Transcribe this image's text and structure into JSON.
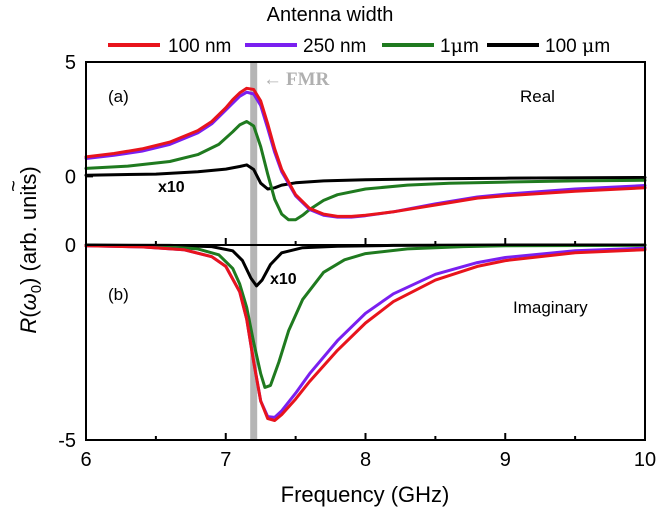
{
  "chart_data": {
    "type": "line",
    "legend_title": "Antenna width",
    "legend_position": "top",
    "xlabel": "Frequency (GHz)",
    "xlim": [
      6,
      10
    ],
    "xticks": [
      "6",
      "7",
      "8",
      "9",
      "10"
    ],
    "ylabel_parts": {
      "main": "R",
      "tilde": "~",
      "paren_open": "(",
      "omega": "ω",
      "sub": "0",
      "rest": ") (arb. units)"
    },
    "fmr": {
      "label": "FMR",
      "arrow": "←",
      "frequency": 7.2,
      "color": "#b5b5b5"
    },
    "colors": {
      "100 nm": "#e8141c",
      "250 nm": "#7a1ff0",
      "1μm": "#1f7a1f",
      "100 μm": "#000000"
    },
    "legend": [
      {
        "name": "100 nm",
        "color": "#e8141c",
        "parts": [
          "100 nm"
        ]
      },
      {
        "name": "250 nm",
        "color": "#7a1ff0",
        "parts": [
          "250 nm"
        ]
      },
      {
        "name": "1μm",
        "color": "#1f7a1f",
        "parts": [
          "1",
          "μ",
          "m"
        ]
      },
      {
        "name": "100 μm",
        "color": "#000000",
        "parts": [
          "100 ",
          "μ",
          "m"
        ]
      }
    ],
    "panels": [
      {
        "label": "(a)",
        "annotation": "Real",
        "scale_note": "x10",
        "ylim": [
          -3,
          5
        ],
        "yticks": [
          "5",
          "0"
        ],
        "series": [
          {
            "name": "100 nm",
            "color": "#e8141c",
            "x": [
              6.0,
              6.2,
              6.4,
              6.6,
              6.8,
              6.9,
              7.0,
              7.05,
              7.1,
              7.15,
              7.2,
              7.25,
              7.3,
              7.35,
              7.4,
              7.5,
              7.6,
              7.7,
              7.8,
              7.9,
              8.0,
              8.2,
              8.5,
              8.8,
              9.0,
              9.5,
              10.0
            ],
            "y": [
              0.85,
              1.0,
              1.2,
              1.5,
              2.0,
              2.4,
              3.0,
              3.35,
              3.65,
              3.85,
              3.8,
              3.3,
              2.3,
              1.2,
              0.3,
              -0.8,
              -1.4,
              -1.65,
              -1.75,
              -1.75,
              -1.7,
              -1.55,
              -1.25,
              -0.95,
              -0.85,
              -0.65,
              -0.5
            ]
          },
          {
            "name": "250 nm",
            "color": "#7a1ff0",
            "x": [
              6.0,
              6.2,
              6.4,
              6.6,
              6.8,
              6.9,
              7.0,
              7.05,
              7.1,
              7.15,
              7.2,
              7.25,
              7.3,
              7.35,
              7.4,
              7.5,
              7.6,
              7.7,
              7.8,
              7.9,
              8.0,
              8.2,
              8.5,
              8.8,
              9.0,
              9.5,
              10.0
            ],
            "y": [
              0.78,
              0.92,
              1.1,
              1.4,
              1.9,
              2.3,
              2.9,
              3.2,
              3.5,
              3.68,
              3.6,
              3.1,
              2.1,
              1.05,
              0.2,
              -0.85,
              -1.45,
              -1.7,
              -1.78,
              -1.78,
              -1.72,
              -1.55,
              -1.2,
              -0.9,
              -0.78,
              -0.55,
              -0.4
            ]
          },
          {
            "name": "1μm",
            "color": "#1f7a1f",
            "x": [
              6.0,
              6.3,
              6.6,
              6.8,
              6.95,
              7.05,
              7.1,
              7.15,
              7.2,
              7.25,
              7.3,
              7.35,
              7.4,
              7.45,
              7.5,
              7.55,
              7.6,
              7.7,
              7.8,
              8.0,
              8.3,
              8.6,
              9.0,
              9.5,
              10.0
            ],
            "y": [
              0.35,
              0.45,
              0.65,
              0.95,
              1.4,
              1.95,
              2.25,
              2.4,
              2.2,
              1.3,
              0.1,
              -1.0,
              -1.65,
              -1.9,
              -1.9,
              -1.7,
              -1.45,
              -1.05,
              -0.8,
              -0.55,
              -0.38,
              -0.3,
              -0.25,
              -0.2,
              -0.17
            ]
          },
          {
            "name": "100 μm",
            "color": "#000000",
            "x": [
              6.0,
              6.5,
              6.8,
              7.0,
              7.1,
              7.15,
              7.2,
              7.25,
              7.3,
              7.35,
              7.4,
              7.5,
              7.7,
              8.0,
              8.5,
              9.0,
              10.0
            ],
            "y": [
              0.05,
              0.1,
              0.2,
              0.32,
              0.43,
              0.5,
              0.3,
              -0.3,
              -0.55,
              -0.5,
              -0.38,
              -0.28,
              -0.2,
              -0.15,
              -0.1,
              -0.08,
              -0.05
            ]
          }
        ]
      },
      {
        "label": "(b)",
        "annotation": "Imaginary",
        "scale_note": "x10",
        "ylim": [
          -5,
          0
        ],
        "yticks": [
          "0",
          "-5"
        ],
        "series": [
          {
            "name": "100 nm",
            "color": "#e8141c",
            "x": [
              6.0,
              6.4,
              6.7,
              6.9,
              7.0,
              7.1,
              7.15,
              7.2,
              7.25,
              7.3,
              7.35,
              7.4,
              7.5,
              7.6,
              7.8,
              8.0,
              8.2,
              8.5,
              8.8,
              9.0,
              9.5,
              10.0
            ],
            "y": [
              -0.02,
              -0.05,
              -0.12,
              -0.3,
              -0.55,
              -1.2,
              -1.9,
              -3.0,
              -4.0,
              -4.45,
              -4.5,
              -4.35,
              -3.95,
              -3.5,
              -2.7,
              -2.0,
              -1.45,
              -0.9,
              -0.55,
              -0.4,
              -0.2,
              -0.12
            ]
          },
          {
            "name": "250 nm",
            "color": "#7a1ff0",
            "x": [
              6.0,
              6.4,
              6.7,
              6.9,
              7.0,
              7.1,
              7.15,
              7.2,
              7.25,
              7.3,
              7.35,
              7.4,
              7.5,
              7.6,
              7.8,
              8.0,
              8.2,
              8.5,
              8.8,
              9.0,
              9.5,
              10.0
            ],
            "y": [
              -0.02,
              -0.05,
              -0.12,
              -0.3,
              -0.55,
              -1.2,
              -1.9,
              -3.0,
              -4.0,
              -4.4,
              -4.42,
              -4.25,
              -3.8,
              -3.3,
              -2.45,
              -1.75,
              -1.25,
              -0.75,
              -0.45,
              -0.32,
              -0.15,
              -0.08
            ]
          },
          {
            "name": "1μm",
            "color": "#1f7a1f",
            "x": [
              6.0,
              6.5,
              6.8,
              6.95,
              7.05,
              7.1,
              7.15,
              7.2,
              7.25,
              7.28,
              7.32,
              7.38,
              7.45,
              7.55,
              7.7,
              7.85,
              8.0,
              8.3,
              8.7,
              9.0,
              10.0
            ],
            "y": [
              -0.01,
              -0.03,
              -0.1,
              -0.25,
              -0.6,
              -1.0,
              -1.6,
              -2.5,
              -3.3,
              -3.65,
              -3.6,
              -3.0,
              -2.2,
              -1.4,
              -0.7,
              -0.38,
              -0.22,
              -0.1,
              -0.04,
              -0.02,
              -0.01
            ]
          },
          {
            "name": "100 μm",
            "color": "#000000",
            "x": [
              6.0,
              6.6,
              6.9,
              7.05,
              7.12,
              7.18,
              7.22,
              7.26,
              7.32,
              7.4,
              7.55,
              7.8,
              8.2,
              9.0,
              10.0
            ],
            "y": [
              0.0,
              -0.01,
              -0.04,
              -0.15,
              -0.4,
              -0.85,
              -1.05,
              -0.9,
              -0.5,
              -0.2,
              -0.07,
              -0.03,
              -0.01,
              0.0,
              0.0
            ]
          }
        ]
      }
    ]
  }
}
